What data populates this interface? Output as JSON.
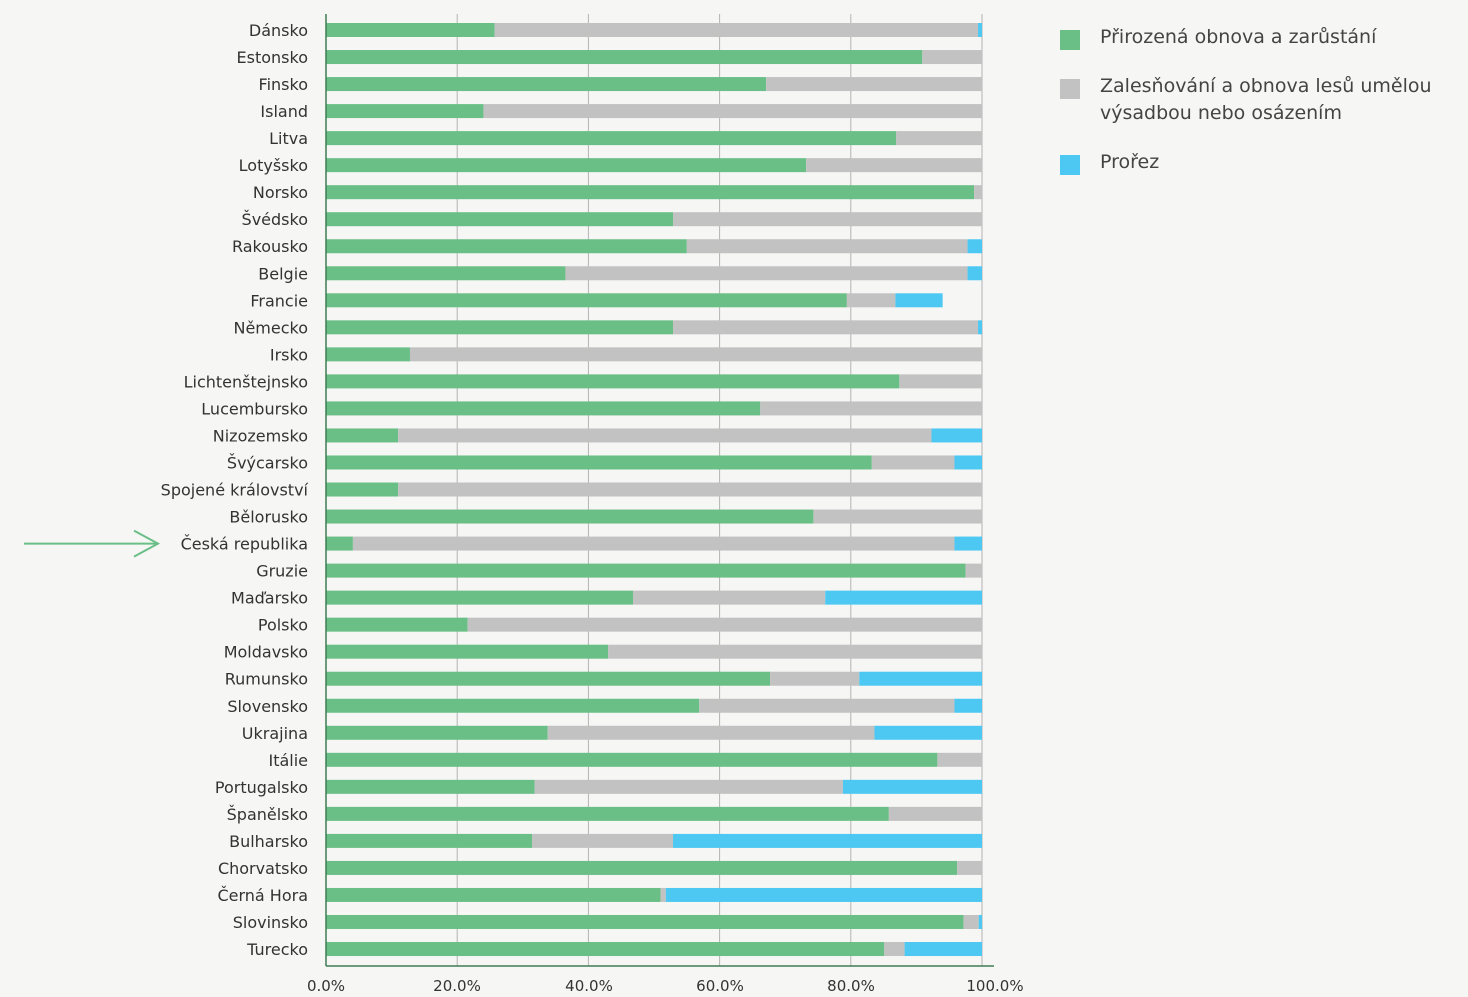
{
  "chart_data": {
    "type": "bar",
    "orientation": "horizontal",
    "stacked": true,
    "categories": [
      "Dánsko",
      "Estonsko",
      "Finsko",
      "Island",
      "Litva",
      "Lotyšsko",
      "Norsko",
      "Švédsko",
      "Rakousko",
      "Belgie",
      "Francie",
      "Německo",
      "Irsko",
      "Lichtenštejnsko",
      "Lucembursko",
      "Nizozemsko",
      "Švýcarsko",
      "Spojené království",
      "Bělorusko",
      "Česká republika",
      "Gruzie",
      "Maďarsko",
      "Polsko",
      "Moldavsko",
      "Rumunsko",
      "Slovensko",
      "Ukrajina",
      "Itálie",
      "Portugalsko",
      "Španělsko",
      "Bulharsko",
      "Chorvatsko",
      "Černá Hora",
      "Slovinsko",
      "Turecko"
    ],
    "series": [
      {
        "name": "Přirozená obnova a zarůstání",
        "color": "#6abf86",
        "values": [
          25.7,
          90.9,
          67.1,
          24.0,
          86.9,
          73.2,
          98.8,
          52.9,
          55.0,
          36.5,
          79.4,
          52.9,
          12.8,
          87.4,
          66.2,
          11.0,
          83.2,
          11.0,
          74.3,
          4.1,
          97.5,
          46.8,
          21.6,
          43.0,
          67.7,
          56.9,
          33.8,
          93.2,
          31.8,
          85.8,
          31.4,
          96.2,
          51.0,
          97.2,
          85.1
        ]
      },
      {
        "name": "Zalesňování a obnova lesů umělou výsadbou nebo osázením",
        "color": "#c2c2c2",
        "values": [
          73.7,
          9.1,
          32.9,
          76.0,
          13.1,
          26.8,
          1.2,
          47.1,
          42.8,
          61.3,
          7.4,
          46.5,
          87.2,
          12.6,
          33.8,
          81.3,
          12.6,
          89.0,
          25.7,
          91.7,
          2.5,
          29.3,
          78.4,
          57.0,
          13.6,
          38.9,
          49.8,
          6.8,
          47.0,
          14.2,
          21.5,
          3.8,
          0.8,
          2.3,
          3.1
        ]
      },
      {
        "name": "Prořez",
        "color": "#4dc8f2",
        "values": [
          0.6,
          0.0,
          0.0,
          0.0,
          0.0,
          0.0,
          0.0,
          0.0,
          2.2,
          2.2,
          7.2,
          0.6,
          0.0,
          0.0,
          0.0,
          7.7,
          4.2,
          0.0,
          0.0,
          4.2,
          0.0,
          23.9,
          0.0,
          0.0,
          18.7,
          4.2,
          16.4,
          0.0,
          21.2,
          0.0,
          47.1,
          0.0,
          48.2,
          0.5,
          11.8
        ]
      }
    ],
    "x_ticks": [
      "0.0%",
      "20.0%",
      "40.0%",
      "60.0%",
      "80.0%",
      "100.0%"
    ],
    "xlim": [
      0,
      100
    ],
    "grid": true,
    "legend_position": "right",
    "highlight": {
      "category": "Česká republika",
      "marker": "arrow",
      "color": "#6abf86"
    }
  }
}
